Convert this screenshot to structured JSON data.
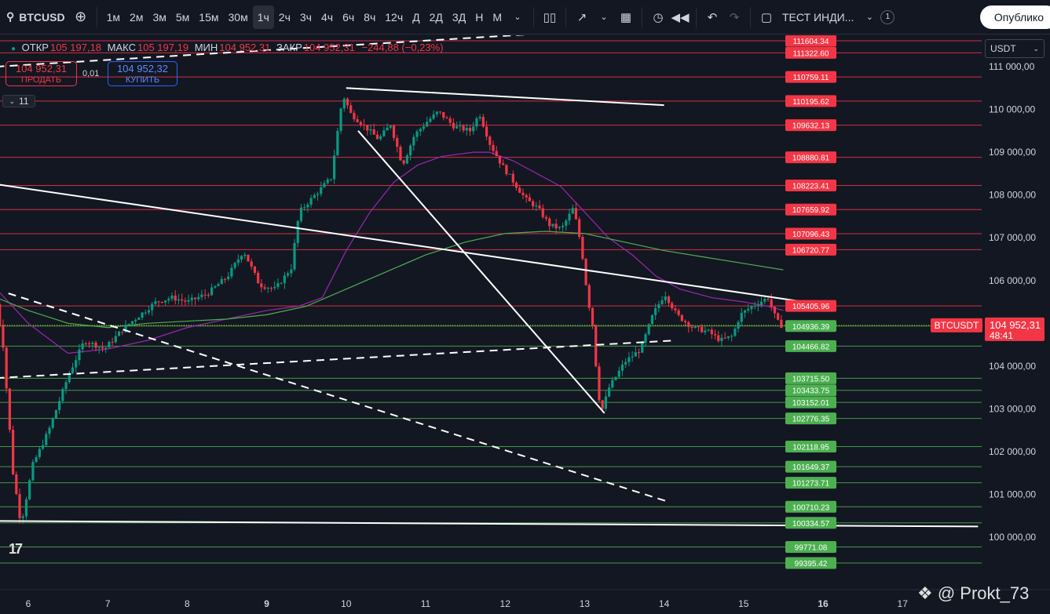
{
  "toolbar": {
    "symbol": "BTCUSD",
    "timeframes": [
      "1м",
      "2м",
      "3м",
      "5м",
      "15м",
      "30м",
      "1ч",
      "2ч",
      "3ч",
      "4ч",
      "6ч",
      "8ч",
      "12ч",
      "Д",
      "2Д",
      "3Д",
      "Н",
      "М"
    ],
    "active_timeframe": "1ч",
    "template_label": "ТЕСТ ИНДИ...",
    "template_badge": "1",
    "publish_label": "Опублико"
  },
  "legend": {
    "open_label": "ОТКР",
    "open": "105 197,18",
    "high_label": "МАКС",
    "high": "105 197,19",
    "low_label": "МИН",
    "low": "104 952,31",
    "close_label": "ЗАКР",
    "close": "104 952,31",
    "change": "−244,88 (−0,23%)"
  },
  "trade": {
    "sell_price": "104 952,31",
    "sell_label": "ПРОДАТЬ",
    "buy_price": "104 952,32",
    "buy_label": "КУПИТЬ",
    "spread": "0,01"
  },
  "indicators_count": "11",
  "currency": "USDT",
  "colors": {
    "bg": "#131722",
    "up": "#089981",
    "down": "#f23645",
    "resistance": "#f23645",
    "support": "#4caf50",
    "ma_purple": "#9c27b0",
    "ma_green": "#4caf50"
  },
  "chart_data": {
    "type": "candlestick",
    "y_axis_ticks": [
      "111 000,00",
      "110 000,00",
      "109 000,00",
      "108 000,00",
      "107 000,00",
      "106 000,00",
      "105 000,00",
      "104 000,00",
      "103 000,00",
      "102 000,00",
      "101 000,00",
      "100 000,00"
    ],
    "x_axis_ticks": [
      "6",
      "7",
      "8",
      "9",
      "10",
      "11",
      "12",
      "13",
      "14",
      "15",
      "16",
      "17"
    ],
    "ylim": [
      99300,
      111700
    ],
    "current_price": {
      "symbol": "BTCUSDT",
      "price": "104 952,31",
      "countdown": "48:41"
    },
    "resistance_levels": [
      "111604.34",
      "111322.60",
      "110759.11",
      "110195.62",
      "109632.13",
      "108880.81",
      "108223.41",
      "107659.92",
      "107096.43",
      "106720.77",
      "105405.96"
    ],
    "support_levels": [
      "104936.39",
      "104466.82",
      "103715.50",
      "103433.75",
      "103152.01",
      "102776.35",
      "102118.95",
      "101649.37",
      "101273.71",
      "100710.23",
      "100334.57",
      "99771.08",
      "99395.42"
    ],
    "price_path": [
      [
        5.6,
        105900
      ],
      [
        5.72,
        104600
      ],
      [
        5.85,
        101500
      ],
      [
        5.95,
        100300
      ],
      [
        6.1,
        101700
      ],
      [
        6.3,
        102500
      ],
      [
        6.55,
        103800
      ],
      [
        6.75,
        104600
      ],
      [
        7.0,
        104400
      ],
      [
        7.25,
        104900
      ],
      [
        7.45,
        105200
      ],
      [
        7.65,
        105500
      ],
      [
        7.85,
        105600
      ],
      [
        8.05,
        105500
      ],
      [
        8.3,
        105700
      ],
      [
        8.55,
        106100
      ],
      [
        8.75,
        106700
      ],
      [
        8.95,
        105900
      ],
      [
        9.15,
        105800
      ],
      [
        9.35,
        106300
      ],
      [
        9.45,
        107600
      ],
      [
        9.65,
        108000
      ],
      [
        9.85,
        108400
      ],
      [
        10.0,
        110350
      ],
      [
        10.1,
        109900
      ],
      [
        10.25,
        109650
      ],
      [
        10.45,
        109300
      ],
      [
        10.6,
        109650
      ],
      [
        10.75,
        108700
      ],
      [
        10.9,
        109400
      ],
      [
        11.05,
        109700
      ],
      [
        11.2,
        109950
      ],
      [
        11.4,
        109600
      ],
      [
        11.6,
        109500
      ],
      [
        11.72,
        109900
      ],
      [
        11.85,
        109200
      ],
      [
        12.0,
        108700
      ],
      [
        12.15,
        108300
      ],
      [
        12.3,
        107900
      ],
      [
        12.45,
        107700
      ],
      [
        12.6,
        107300
      ],
      [
        12.75,
        107200
      ],
      [
        12.9,
        107700
      ],
      [
        13.0,
        106800
      ],
      [
        13.08,
        105600
      ],
      [
        13.15,
        104900
      ],
      [
        13.2,
        103600
      ],
      [
        13.25,
        102900
      ],
      [
        13.35,
        103500
      ],
      [
        13.55,
        104100
      ],
      [
        13.75,
        104400
      ],
      [
        13.9,
        105200
      ],
      [
        14.05,
        105700
      ],
      [
        14.2,
        105200
      ],
      [
        14.4,
        104900
      ],
      [
        14.6,
        104800
      ],
      [
        14.75,
        104600
      ],
      [
        14.9,
        104700
      ],
      [
        15.0,
        105200
      ],
      [
        15.15,
        105400
      ],
      [
        15.25,
        105500
      ],
      [
        15.35,
        105600
      ],
      [
        15.45,
        105100
      ],
      [
        15.5,
        104950
      ]
    ],
    "series": [
      {
        "name": "MA-purple",
        "values": [
          [
            5.6,
            105800
          ],
          [
            6.0,
            105000
          ],
          [
            6.5,
            104300
          ],
          [
            7.0,
            104400
          ],
          [
            7.5,
            104600
          ],
          [
            8.0,
            104900
          ],
          [
            8.5,
            105100
          ],
          [
            9.0,
            105300
          ],
          [
            9.4,
            105400
          ],
          [
            9.7,
            105600
          ],
          [
            10.0,
            106700
          ],
          [
            10.3,
            107600
          ],
          [
            10.6,
            108300
          ],
          [
            10.9,
            108700
          ],
          [
            11.2,
            108900
          ],
          [
            11.6,
            109000
          ],
          [
            11.8,
            109000
          ],
          [
            12.1,
            108800
          ],
          [
            12.4,
            108500
          ],
          [
            12.7,
            108200
          ],
          [
            13.0,
            107600
          ],
          [
            13.3,
            107000
          ],
          [
            13.6,
            106600
          ],
          [
            13.9,
            106100
          ],
          [
            14.2,
            105800
          ],
          [
            14.6,
            105600
          ],
          [
            15.0,
            105500
          ],
          [
            15.3,
            105400
          ],
          [
            15.5,
            105300
          ]
        ]
      },
      {
        "name": "MA-green",
        "values": [
          [
            5.6,
            105600
          ],
          [
            6.0,
            105300
          ],
          [
            6.5,
            105000
          ],
          [
            7.0,
            104900
          ],
          [
            7.5,
            105000
          ],
          [
            8.0,
            105050
          ],
          [
            8.5,
            105100
          ],
          [
            9.0,
            105200
          ],
          [
            9.5,
            105400
          ],
          [
            10.0,
            105800
          ],
          [
            10.5,
            106200
          ],
          [
            11.0,
            106600
          ],
          [
            11.5,
            106900
          ],
          [
            12.0,
            107100
          ],
          [
            12.5,
            107150
          ],
          [
            13.0,
            107100
          ],
          [
            13.5,
            106900
          ],
          [
            14.0,
            106700
          ],
          [
            14.5,
            106550
          ],
          [
            15.0,
            106400
          ],
          [
            15.5,
            106250
          ]
        ]
      }
    ],
    "trendlines": [
      {
        "style": "solid",
        "points": [
          [
            5.6,
            108250
          ],
          [
            15.95,
            105450
          ]
        ]
      },
      {
        "style": "solid",
        "points": [
          [
            10.0,
            110500
          ],
          [
            14.0,
            110100
          ]
        ]
      },
      {
        "style": "solid",
        "points": [
          [
            10.15,
            109500
          ],
          [
            13.25,
            102900
          ]
        ]
      },
      {
        "style": "solid",
        "points": [
          [
            5.6,
            100380
          ],
          [
            17.95,
            100250
          ]
        ]
      },
      {
        "style": "dashed",
        "points": [
          [
            5.6,
            111000
          ],
          [
            12.7,
            111800
          ]
        ]
      },
      {
        "style": "dashed",
        "points": [
          [
            5.6,
            103720
          ],
          [
            14.15,
            104600
          ]
        ]
      },
      {
        "style": "dashed",
        "points": [
          [
            5.75,
            105700
          ],
          [
            14.05,
            100830
          ]
        ]
      }
    ],
    "grid": false,
    "legend_position": "top-left"
  }
}
